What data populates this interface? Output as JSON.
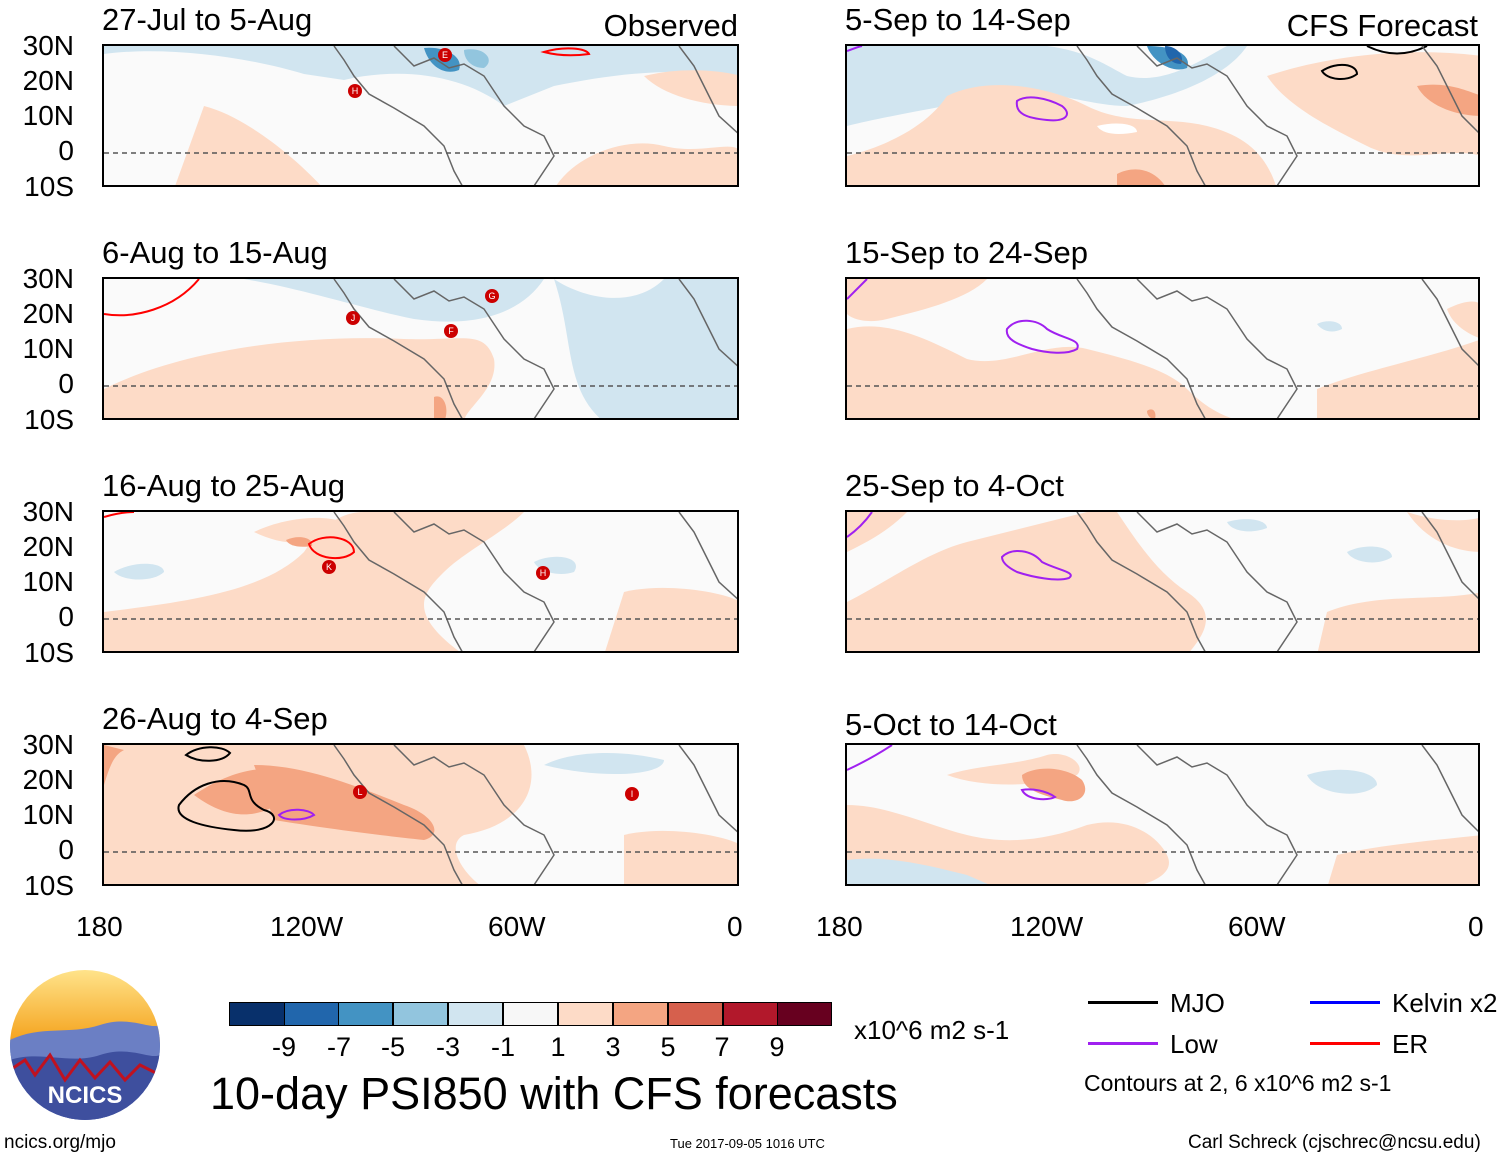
{
  "panels_left": [
    {
      "title": "27-Jul to 5-Aug",
      "label": "Observed"
    },
    {
      "title": "6-Aug to 15-Aug",
      "label": ""
    },
    {
      "title": "16-Aug to 25-Aug",
      "label": ""
    },
    {
      "title": "26-Aug to 4-Sep",
      "label": ""
    }
  ],
  "panels_right": [
    {
      "title": "5-Sep to 14-Sep",
      "label": "CFS Forecast"
    },
    {
      "title": "15-Sep to 24-Sep",
      "label": ""
    },
    {
      "title": "25-Sep to 4-Oct",
      "label": ""
    },
    {
      "title": "5-Oct to 14-Oct",
      "label": ""
    }
  ],
  "lat_labels": [
    "30N",
    "20N",
    "10N",
    "0",
    "10S"
  ],
  "lon_labels": [
    "180",
    "120W",
    "60W",
    "0"
  ],
  "storms": [
    "E",
    "H",
    "G",
    "J",
    "F",
    "K",
    "H",
    "L",
    "I"
  ],
  "colorbar": {
    "colors": [
      "#08306b",
      "#2166ac",
      "#4393c3",
      "#92c5de",
      "#d1e5f0",
      "#f7f7f7",
      "#fddbc7",
      "#f4a582",
      "#d6604d",
      "#b2182b",
      "#67001f"
    ],
    "labels": [
      "-9",
      "-7",
      "-5",
      "-3",
      "-1",
      "1",
      "3",
      "5",
      "7",
      "9"
    ],
    "units": "x10^6 m2 s-1"
  },
  "legend": {
    "items": [
      {
        "label": "MJO",
        "color": "#000000"
      },
      {
        "label": "Kelvin x2",
        "color": "#0000ff"
      },
      {
        "label": "Low",
        "color": "#a020f0"
      },
      {
        "label": "ER",
        "color": "#ff0000"
      }
    ],
    "note": "Contours at 2, 6 x10^6 m2 s-1"
  },
  "main_title": "10-day PSI850 with CFS forecasts",
  "logo_text": "NCICS",
  "footer": {
    "site": "ncics.org/mjo",
    "timestamp": "Tue 2017-09-05 1016 UTC",
    "author": "Carl Schreck (cjschrec@ncsu.edu)"
  }
}
